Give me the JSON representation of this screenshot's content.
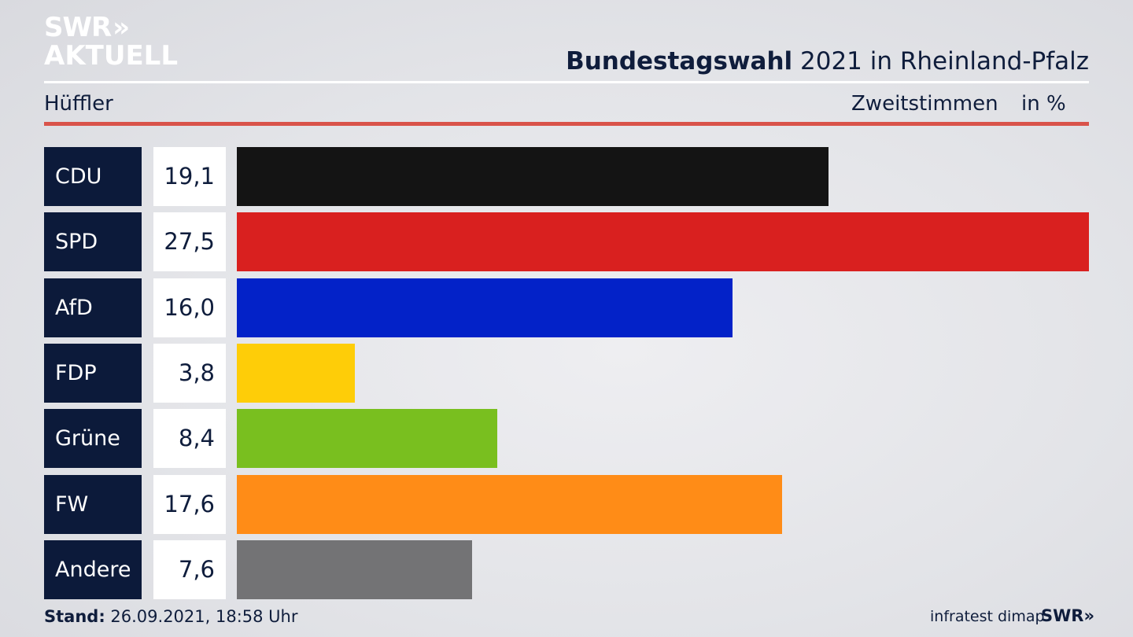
{
  "brand": {
    "line1": "SWR",
    "chevrons": "»",
    "line2": "AKTUELL"
  },
  "header": {
    "title_bold": "Bundestagswahl",
    "title_rest": " 2021 in Rheinland-Pfalz",
    "subtitle": "Hüffler",
    "measure": "Zweitstimmen",
    "unit": "in %"
  },
  "chart_data": {
    "type": "bar",
    "orientation": "horizontal",
    "categories": [
      "CDU",
      "SPD",
      "AfD",
      "FDP",
      "Grüne",
      "FW",
      "Andere"
    ],
    "values": [
      19.1,
      27.5,
      16.0,
      3.8,
      8.4,
      17.6,
      7.6
    ],
    "value_labels": [
      "19,1",
      "27,5",
      "16,0",
      "3,8",
      "8,4",
      "17,6",
      "7,6"
    ],
    "colors": [
      "#141414",
      "#d9201f",
      "#0322c8",
      "#fecd08",
      "#79bf1f",
      "#ff8c17",
      "#737375"
    ],
    "grid": false
  },
  "footer": {
    "stand_label": "Stand:",
    "stand_value": " 26.09.2021, 18:58 Uhr",
    "source": "infratest dimap",
    "swr": "SWR",
    "swr_chevrons": "»"
  }
}
